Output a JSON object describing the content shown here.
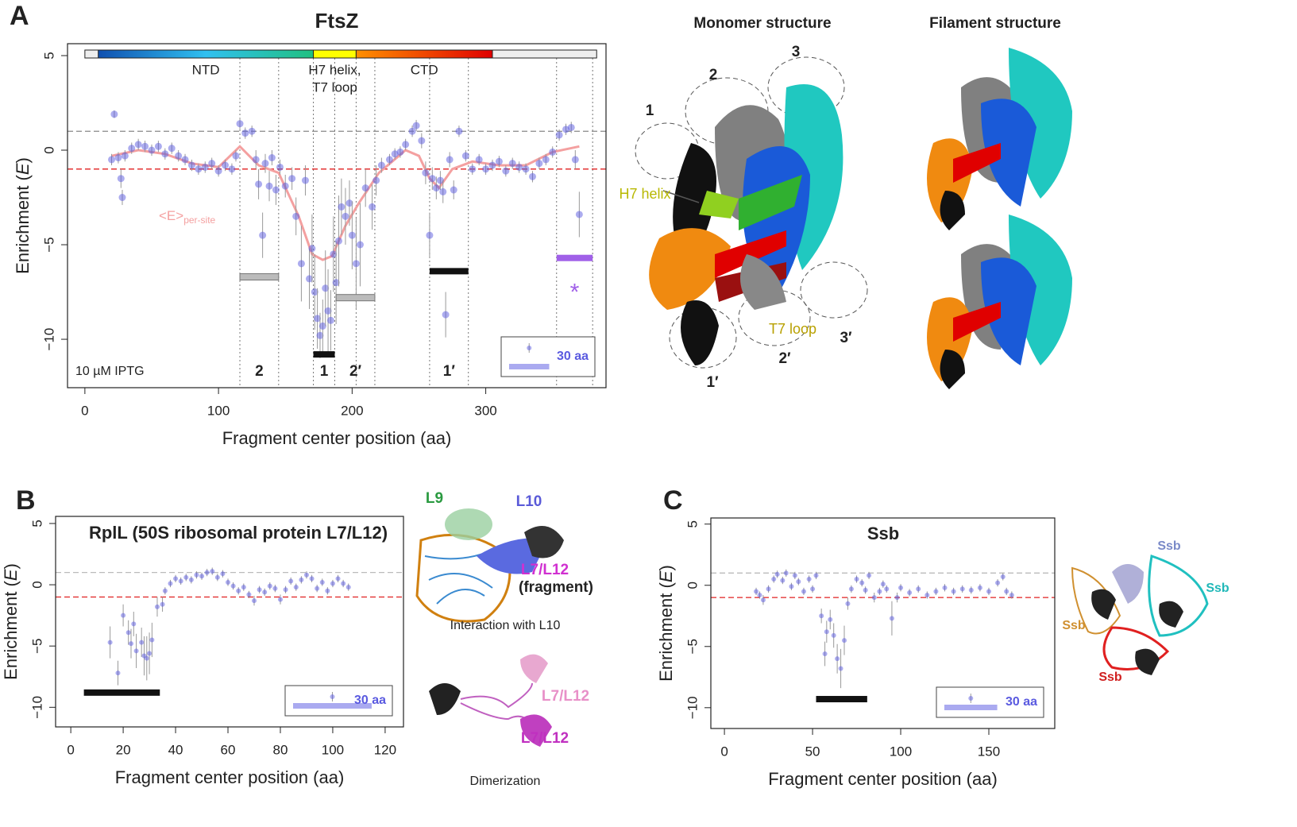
{
  "chart_data": [
    {
      "type": "scatter",
      "panel": "A",
      "title": "FtsZ",
      "x_label": "Fragment center position (aa)",
      "y_label": [
        "Enrichment (",
        "E",
        ")"
      ],
      "xlim": [
        -13,
        390
      ],
      "ylim": [
        -12.56,
        5.63
      ],
      "xticks": [
        0,
        100,
        200,
        300
      ],
      "yticks": [
        {
          "value": -10,
          "label": "−10"
        },
        {
          "value": -5,
          "label": "−5"
        },
        0,
        5
      ],
      "color": "#5a5ae0",
      "x": [
        20,
        22,
        25,
        27,
        28,
        30,
        35,
        40,
        45,
        50,
        55,
        60,
        65,
        70,
        75,
        80,
        85,
        90,
        95,
        100,
        105,
        110,
        113,
        116,
        120,
        125,
        128,
        130,
        133,
        135,
        138,
        140,
        143,
        146,
        150,
        155,
        158,
        162,
        165,
        168,
        170,
        172,
        174,
        176,
        178,
        180,
        182,
        184,
        186,
        188,
        190,
        192,
        195,
        198,
        200,
        203,
        206,
        210,
        215,
        218,
        222,
        228,
        232,
        236,
        240,
        245,
        248,
        252,
        255,
        258,
        260,
        263,
        266,
        268,
        270,
        273,
        276,
        280,
        285,
        290,
        295,
        300,
        305,
        310,
        315,
        320,
        325,
        330,
        335,
        340,
        345,
        350,
        355,
        360,
        364,
        367,
        370
      ],
      "y": [
        -0.5,
        1.9,
        -0.4,
        -1.5,
        -2.5,
        -0.3,
        0.1,
        0.3,
        0.2,
        0,
        0.2,
        -0.2,
        0.1,
        -0.3,
        -0.5,
        -0.8,
        -1.0,
        -0.9,
        -0.7,
        -1.1,
        -0.8,
        -1.0,
        -0.3,
        1.4,
        0.9,
        1.0,
        -0.5,
        -1.8,
        -4.5,
        -0.7,
        -1.9,
        -0.4,
        -2.1,
        -0.9,
        -1.9,
        -1.5,
        -3.5,
        -6.0,
        -1.6,
        -6.8,
        -5.2,
        -7.5,
        -8.9,
        -9.8,
        -9.3,
        -7.3,
        -8.5,
        -9.0,
        -5.5,
        -7.0,
        -4.8,
        -3.0,
        -3.5,
        -2.8,
        -4.5,
        -6.0,
        -5.0,
        -2.0,
        -3.0,
        -1.6,
        -0.8,
        -0.5,
        -0.2,
        -0.1,
        0.3,
        1.0,
        1.3,
        0.5,
        -1.2,
        -4.5,
        -1.5,
        -2.0,
        -1.6,
        -2.2,
        -8.7,
        -0.5,
        -2.1,
        1.0,
        -0.3,
        -1.0,
        -0.5,
        -1.0,
        -0.8,
        -0.6,
        -1.1,
        -0.7,
        -0.9,
        -1.0,
        -1.4,
        -0.7,
        -0.5,
        -0.1,
        0.8,
        1.1,
        1.2,
        -0.5,
        -3.4
      ],
      "errors": [
        0.3,
        0.2,
        0.3,
        0.5,
        0.4,
        0.3,
        0.3,
        0.3,
        0.3,
        0.3,
        0.3,
        0.3,
        0.3,
        0.3,
        0.3,
        0.3,
        0.3,
        0.3,
        0.3,
        0.3,
        0.3,
        0.3,
        0.3,
        0.3,
        0.3,
        0.3,
        0.5,
        0.8,
        1.2,
        0.5,
        0.8,
        0.4,
        0.8,
        0.4,
        0.6,
        0.6,
        1.0,
        2.0,
        0.8,
        1.6,
        1.8,
        2.0,
        1.6,
        1.2,
        1.4,
        2.0,
        2.2,
        1.6,
        2.0,
        2.2,
        2.4,
        1.5,
        1.5,
        1.2,
        1.8,
        2.4,
        2.2,
        1.0,
        1.2,
        0.8,
        0.4,
        0.3,
        0.3,
        0.3,
        0.3,
        0.3,
        0.3,
        0.4,
        0.6,
        1.2,
        0.6,
        0.6,
        0.5,
        0.6,
        1.2,
        0.4,
        0.5,
        0.3,
        0.3,
        0.3,
        0.3,
        0.3,
        0.3,
        0.3,
        0.3,
        0.3,
        0.3,
        0.3,
        0.3,
        0.3,
        0.3,
        0.3,
        0.3,
        0.3,
        0.3,
        0.5,
        1.2
      ],
      "smooth": {
        "label": [
          "<E>",
          "per-site"
        ],
        "color": "#f4a0a0",
        "x": [
          20,
          40,
          60,
          80,
          100,
          116,
          130,
          145,
          160,
          170,
          178,
          185,
          195,
          205,
          220,
          240,
          250,
          258,
          265,
          275,
          290,
          310,
          330,
          350,
          370
        ],
        "y": [
          -0.3,
          0,
          -0.2,
          -0.7,
          -0.9,
          0.2,
          -0.8,
          -1.2,
          -3.5,
          -5.5,
          -5.8,
          -5.6,
          -4.0,
          -2.8,
          -1.2,
          0,
          -0.3,
          -1.5,
          -2.0,
          -1.0,
          -0.6,
          -0.8,
          -0.8,
          -0.1,
          0.2
        ]
      },
      "hlines": [
        {
          "value": 1,
          "color": "#888888"
        },
        {
          "value": -1,
          "color": "#e02020"
        }
      ],
      "vlines": [
        116,
        145,
        171,
        187,
        203,
        217,
        258,
        287,
        353,
        380
      ],
      "segments": [
        {
          "label": "2",
          "start": 116,
          "end": 145,
          "y": -6.7,
          "color": "#bbbbbb"
        },
        {
          "label": "1",
          "start": 171,
          "end": 187,
          "y": -10.8,
          "color": "#111111"
        },
        {
          "label": "2′",
          "start": 188,
          "end": 217,
          "y": -7.8,
          "color": "#bbbbbb"
        },
        {
          "label": "1′",
          "start": 258,
          "end": 287,
          "y": -6.4,
          "color": "#111111"
        },
        {
          "label": null,
          "start": 353,
          "end": 380,
          "y": -5.7,
          "color": "#a060e8"
        }
      ],
      "asterisk": "*",
      "domain_bar": {
        "extent": [
          0,
          383
        ],
        "domains": [
          {
            "label": [
              "NTD"
            ],
            "start": 10,
            "end": 171,
            "colors": [
              "#1050b0",
              "#30c0f0",
              "#20c080"
            ]
          },
          {
            "label": [
              "H7 helix,",
              "T7 loop"
            ],
            "start": 171,
            "end": 203,
            "colors": [
              "#ffff00"
            ]
          },
          {
            "label": [
              "CTD"
            ],
            "start": 203,
            "end": 305,
            "colors": [
              "#ff9000",
              "#e00000"
            ]
          }
        ]
      },
      "annotation": "10 µM IPTG",
      "scale_bar": {
        "value": 30,
        "label": "30 aa"
      }
    },
    {
      "type": "scatter",
      "panel": "B",
      "title": "RplL (50S ribosomal protein L7/L12)",
      "x_label": "Fragment center position (aa)",
      "y_label": [
        "Enrichment (",
        "E",
        ")"
      ],
      "xlim": [
        -5.8,
        127
      ],
      "ylim": [
        -11.6,
        5.58
      ],
      "xticks": [
        0,
        20,
        40,
        60,
        80,
        100,
        120
      ],
      "yticks": [
        {
          "value": -10,
          "label": "−10"
        },
        {
          "value": -5,
          "label": "−5"
        },
        0,
        5
      ],
      "color": "#5a5ae0",
      "x": [
        15,
        18,
        20,
        22,
        23,
        24,
        25,
        27,
        28,
        29,
        30,
        31,
        33,
        35,
        36,
        38,
        40,
        42,
        44,
        46,
        48,
        50,
        52,
        54,
        56,
        58,
        60,
        62,
        64,
        66,
        68,
        70,
        72,
        74,
        76,
        78,
        80,
        82,
        84,
        86,
        88,
        90,
        92,
        94,
        96,
        98,
        100,
        102,
        104,
        106
      ],
      "y": [
        -4.7,
        -7.2,
        -2.5,
        -3.9,
        -4.8,
        -3.2,
        -5.4,
        -4.7,
        -5.8,
        -6.0,
        -5.6,
        -4.5,
        -1.8,
        -1.6,
        -0.5,
        0.1,
        0.5,
        0.3,
        0.6,
        0.4,
        0.8,
        0.7,
        1.0,
        1.1,
        0.6,
        0.9,
        0.2,
        -0.1,
        -0.5,
        -0.2,
        -0.8,
        -1.3,
        -0.4,
        -0.6,
        -0.1,
        -0.3,
        -1.2,
        -0.4,
        0.3,
        -0.2,
        0.4,
        0.8,
        0.5,
        -0.3,
        0.2,
        -0.5,
        0.1,
        0.5,
        0.1,
        -0.2
      ],
      "errors": [
        1.3,
        1.0,
        0.9,
        1.0,
        1.2,
        1.0,
        1.4,
        1.2,
        1.6,
        1.8,
        1.7,
        1.4,
        0.8,
        0.6,
        0.3,
        0.3,
        0.3,
        0.3,
        0.3,
        0.3,
        0.3,
        0.3,
        0.3,
        0.3,
        0.3,
        0.3,
        0.3,
        0.3,
        0.3,
        0.3,
        0.3,
        0.4,
        0.3,
        0.3,
        0.3,
        0.3,
        0.4,
        0.3,
        0.3,
        0.3,
        0.3,
        0.3,
        0.3,
        0.3,
        0.3,
        0.3,
        0.3,
        0.3,
        0.3,
        0.3
      ],
      "hlines": [
        {
          "value": 1,
          "color": "#bbbbbb"
        },
        {
          "value": -1,
          "color": "#e02020"
        }
      ],
      "segments": [
        {
          "label": null,
          "start": 5,
          "end": 34,
          "y": -8.8,
          "color": "#111111"
        }
      ],
      "scale_bar": {
        "value": 30,
        "label": "30 aa"
      }
    },
    {
      "type": "scatter",
      "panel": "C",
      "title": "Ssb",
      "x_label": "Fragment center position (aa)",
      "y_label": [
        "Enrichment (",
        "E",
        ")"
      ],
      "xlim": [
        -7.7,
        187.4
      ],
      "ylim": [
        -11.7,
        5.5
      ],
      "xticks": [
        0,
        50,
        100,
        150
      ],
      "yticks": [
        {
          "value": -10,
          "label": "−10"
        },
        {
          "value": -5,
          "label": "−5"
        },
        0,
        5
      ],
      "color": "#5a5ae0",
      "x": [
        18,
        20,
        22,
        25,
        28,
        30,
        33,
        35,
        38,
        40,
        42,
        45,
        48,
        50,
        52,
        55,
        57,
        58,
        60,
        62,
        64,
        66,
        68,
        70,
        72,
        75,
        78,
        80,
        82,
        85,
        88,
        90,
        92,
        95,
        98,
        100,
        105,
        110,
        115,
        120,
        125,
        130,
        135,
        140,
        145,
        150,
        155,
        158,
        160,
        163
      ],
      "y": [
        -0.5,
        -0.8,
        -1.2,
        -0.3,
        0.5,
        0.9,
        0.4,
        1.0,
        -0.1,
        0.8,
        0.3,
        -0.5,
        0.5,
        -0.3,
        0.8,
        -2.5,
        -5.6,
        -3.8,
        -2.8,
        -4.1,
        -6.0,
        -6.8,
        -4.5,
        -1.5,
        -0.3,
        0.5,
        0.2,
        -0.4,
        0.8,
        -1.0,
        -0.5,
        0.1,
        -0.3,
        -2.7,
        -1.0,
        -0.2,
        -0.6,
        -0.3,
        -0.8,
        -0.5,
        -0.2,
        -0.5,
        -0.3,
        -0.4,
        -0.2,
        -0.5,
        0.2,
        0.7,
        -0.5,
        -0.8
      ],
      "errors": [
        0.3,
        0.3,
        0.4,
        0.3,
        0.3,
        0.3,
        0.3,
        0.3,
        0.3,
        0.3,
        0.3,
        0.3,
        0.3,
        0.3,
        0.3,
        0.6,
        1.0,
        0.9,
        0.8,
        1.0,
        1.2,
        1.6,
        1.2,
        0.5,
        0.3,
        0.3,
        0.3,
        0.3,
        0.3,
        0.4,
        0.3,
        0.3,
        0.3,
        1.4,
        0.4,
        0.3,
        0.3,
        0.3,
        0.3,
        0.3,
        0.3,
        0.3,
        0.3,
        0.3,
        0.3,
        0.3,
        0.3,
        0.3,
        0.3,
        0.3
      ],
      "hlines": [
        {
          "value": 1,
          "color": "#bbbbbb"
        },
        {
          "value": -1,
          "color": "#e02020"
        }
      ],
      "segments": [
        {
          "label": null,
          "start": 52,
          "end": 81,
          "y": -9.3,
          "color": "#111111"
        }
      ],
      "scale_bar": {
        "value": 30,
        "label": "30 aa"
      }
    }
  ],
  "structures": {
    "A": {
      "titles": [
        "Monomer structure",
        "Filament structure"
      ],
      "labels": [
        "1",
        "2",
        "3",
        "H7 helix",
        "T7 loop",
        "1′",
        "2′",
        "3′"
      ]
    },
    "B": {
      "labels": [
        "L9",
        "L10",
        "L7/L12",
        "(fragment)",
        "L7/L12",
        "L7/L12"
      ],
      "captions": [
        "Interaction with L10",
        "Dimerization"
      ]
    },
    "C": {
      "labels": [
        "Ssb",
        "Ssb",
        "Ssb",
        "Ssb"
      ]
    }
  }
}
